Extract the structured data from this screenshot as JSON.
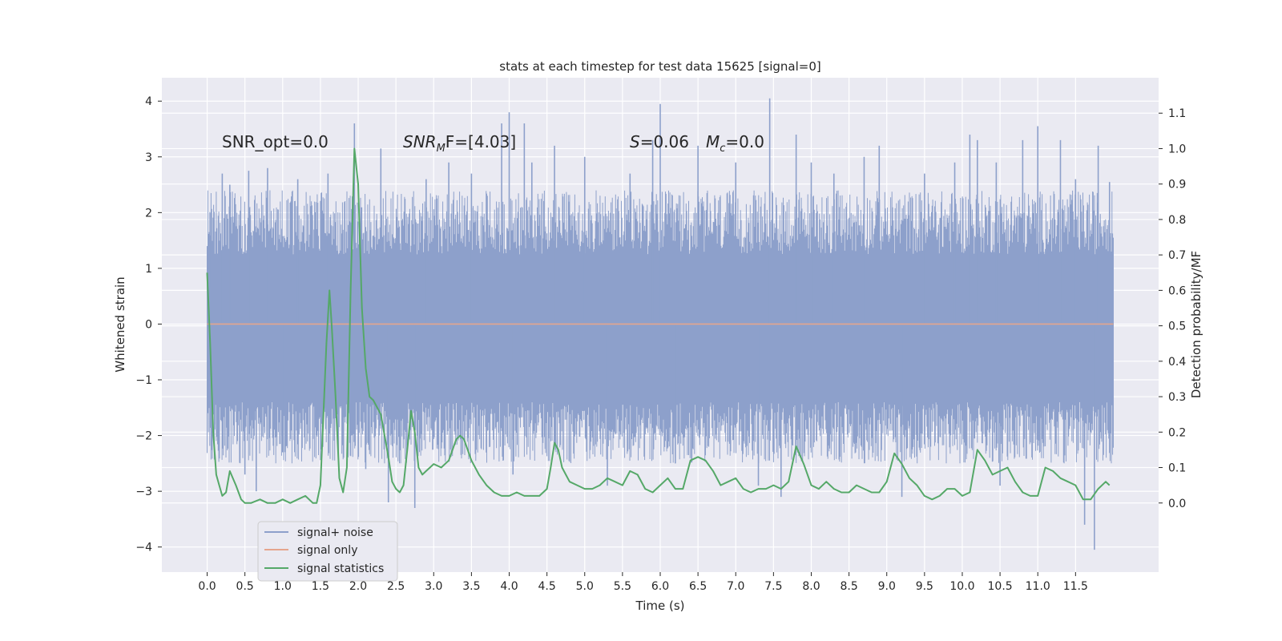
{
  "chart_data": {
    "type": "line",
    "title": "stats at each timestep for test data 15625 [signal=0]",
    "xlabel": "Time (s)",
    "ylabel_left": "Whitened strain",
    "ylabel_right": "Detection probability/MF",
    "xlim": [
      -0.6,
      12.6
    ],
    "ylim_left": [
      -4.45,
      4.42
    ],
    "ylim_right": [
      -0.195,
      1.2
    ],
    "x_ticks": [
      0.0,
      0.5,
      1.0,
      1.5,
      2.0,
      2.5,
      3.0,
      3.5,
      4.0,
      4.5,
      5.0,
      5.5,
      6.0,
      6.5,
      7.0,
      7.5,
      8.0,
      8.5,
      9.0,
      9.5,
      10.0,
      10.5,
      11.0,
      11.5
    ],
    "x_tick_labels": [
      "0.0",
      "0.5",
      "1.0",
      "1.5",
      "2.0",
      "2.5",
      "3.0",
      "3.5",
      "4.0",
      "4.5",
      "5.0",
      "5.5",
      "6.0",
      "6.5",
      "7.0",
      "7.5",
      "8.0",
      "8.5",
      "9.0",
      "9.5",
      "10.0",
      "10.5",
      "11.0",
      "11.5"
    ],
    "y_left_ticks": [
      -4,
      -3,
      -2,
      -1,
      0,
      1,
      2,
      3,
      4
    ],
    "y_left_tick_labels": [
      "−4",
      "−3",
      "−2",
      "−1",
      "0",
      "1",
      "2",
      "3",
      "4"
    ],
    "y_right_ticks": [
      0.0,
      0.1,
      0.2,
      0.3,
      0.4,
      0.5,
      0.6,
      0.7,
      0.8,
      0.9,
      1.0,
      1.1
    ],
    "y_right_tick_labels": [
      "0.0",
      "0.1",
      "0.2",
      "0.3",
      "0.4",
      "0.5",
      "0.6",
      "0.7",
      "0.8",
      "0.9",
      "1.0",
      "1.1"
    ],
    "grid": true,
    "legend_position": "lower-left",
    "annotations": {
      "snr_opt": "SNR_opt=0.0",
      "snr_mf_base": "SNR",
      "snr_mf_sub": "M",
      "snr_mf_rest": "F=[4.03]",
      "s_symbol": "S",
      "s_value": "=0.06",
      "mc_symbol": "M",
      "mc_sub": "c",
      "mc_value": "=0.0"
    },
    "series": [
      {
        "name": "signal+ noise",
        "axis": "left",
        "color": "#8da0cb",
        "style": "dense-noise",
        "x_range": [
          0.0,
          12.0
        ],
        "inner_band": [
          -1.4,
          1.25
        ],
        "outer_band": [
          -2.1,
          2.0
        ],
        "spikes": [
          [
            0.05,
            2.0
          ],
          [
            0.1,
            -1.8
          ],
          [
            0.2,
            2.7
          ],
          [
            0.3,
            2.5
          ],
          [
            0.4,
            -2.1
          ],
          [
            0.5,
            -2.7
          ],
          [
            0.55,
            2.75
          ],
          [
            0.65,
            -3.0
          ],
          [
            0.8,
            2.8
          ],
          [
            1.0,
            -2.3
          ],
          [
            1.2,
            2.6
          ],
          [
            1.6,
            2.7
          ],
          [
            1.95,
            3.6
          ],
          [
            2.1,
            -2.6
          ],
          [
            2.3,
            3.15
          ],
          [
            2.4,
            -3.2
          ],
          [
            2.75,
            -3.3
          ],
          [
            2.9,
            2.6
          ],
          [
            3.2,
            2.9
          ],
          [
            3.5,
            2.7
          ],
          [
            3.9,
            3.6
          ],
          [
            4.0,
            3.8
          ],
          [
            4.05,
            -2.7
          ],
          [
            4.2,
            3.6
          ],
          [
            4.3,
            2.9
          ],
          [
            4.6,
            3.2
          ],
          [
            5.0,
            3.0
          ],
          [
            5.3,
            -2.9
          ],
          [
            5.6,
            2.7
          ],
          [
            5.9,
            3.3
          ],
          [
            6.0,
            3.95
          ],
          [
            6.2,
            -2.5
          ],
          [
            6.5,
            3.2
          ],
          [
            7.0,
            2.9
          ],
          [
            7.3,
            -2.9
          ],
          [
            7.45,
            4.05
          ],
          [
            7.6,
            -3.1
          ],
          [
            7.8,
            3.4
          ],
          [
            8.0,
            2.9
          ],
          [
            8.3,
            2.7
          ],
          [
            8.7,
            3.0
          ],
          [
            8.9,
            3.2
          ],
          [
            9.2,
            -3.1
          ],
          [
            9.5,
            2.7
          ],
          [
            9.9,
            2.9
          ],
          [
            10.1,
            3.4
          ],
          [
            10.2,
            3.3
          ],
          [
            10.45,
            2.9
          ],
          [
            10.5,
            -2.9
          ],
          [
            10.8,
            3.3
          ],
          [
            11.0,
            3.55
          ],
          [
            11.3,
            3.3
          ],
          [
            11.5,
            2.6
          ],
          [
            11.62,
            -3.6
          ],
          [
            11.75,
            -4.05
          ],
          [
            11.8,
            3.2
          ],
          [
            11.95,
            2.55
          ]
        ]
      },
      {
        "name": "signal only",
        "axis": "left",
        "color": "#e5a58d",
        "x": [
          0.0,
          12.0
        ],
        "y": [
          0.0,
          0.0
        ]
      },
      {
        "name": "signal statistics",
        "axis": "right",
        "color": "#55a868",
        "x": [
          0.0,
          0.04,
          0.08,
          0.12,
          0.16,
          0.2,
          0.25,
          0.3,
          0.38,
          0.45,
          0.5,
          0.58,
          0.7,
          0.8,
          0.9,
          1.0,
          1.1,
          1.2,
          1.3,
          1.4,
          1.45,
          1.5,
          1.55,
          1.58,
          1.62,
          1.65,
          1.7,
          1.75,
          1.8,
          1.85,
          1.9,
          1.95,
          2.0,
          2.05,
          2.1,
          2.15,
          2.2,
          2.3,
          2.4,
          2.45,
          2.5,
          2.55,
          2.6,
          2.65,
          2.7,
          2.75,
          2.8,
          2.85,
          2.9,
          2.95,
          3.0,
          3.1,
          3.2,
          3.3,
          3.35,
          3.4,
          3.45,
          3.5,
          3.6,
          3.7,
          3.8,
          3.9,
          4.0,
          4.1,
          4.2,
          4.3,
          4.4,
          4.5,
          4.55,
          4.6,
          4.65,
          4.7,
          4.75,
          4.8,
          4.9,
          5.0,
          5.1,
          5.2,
          5.3,
          5.4,
          5.5,
          5.6,
          5.7,
          5.8,
          5.9,
          6.0,
          6.1,
          6.2,
          6.3,
          6.4,
          6.5,
          6.6,
          6.7,
          6.8,
          6.9,
          7.0,
          7.1,
          7.2,
          7.3,
          7.4,
          7.5,
          7.6,
          7.7,
          7.8,
          7.9,
          8.0,
          8.1,
          8.2,
          8.3,
          8.4,
          8.5,
          8.6,
          8.7,
          8.8,
          8.9,
          9.0,
          9.1,
          9.2,
          9.3,
          9.4,
          9.5,
          9.6,
          9.7,
          9.8,
          9.9,
          10.0,
          10.1,
          10.2,
          10.3,
          10.4,
          10.5,
          10.6,
          10.7,
          10.8,
          10.9,
          11.0,
          11.1,
          11.2,
          11.3,
          11.4,
          11.5,
          11.6,
          11.7,
          11.8,
          11.9,
          11.95
        ],
        "y": [
          0.65,
          0.45,
          0.2,
          0.08,
          0.05,
          0.02,
          0.03,
          0.09,
          0.05,
          0.01,
          0.0,
          0.0,
          0.01,
          0.0,
          0.0,
          0.01,
          0.0,
          0.01,
          0.02,
          0.0,
          0.0,
          0.05,
          0.3,
          0.45,
          0.6,
          0.5,
          0.3,
          0.07,
          0.03,
          0.1,
          0.6,
          1.0,
          0.9,
          0.55,
          0.38,
          0.3,
          0.29,
          0.25,
          0.13,
          0.06,
          0.04,
          0.03,
          0.05,
          0.15,
          0.26,
          0.2,
          0.1,
          0.08,
          0.09,
          0.1,
          0.11,
          0.1,
          0.12,
          0.18,
          0.19,
          0.18,
          0.15,
          0.12,
          0.08,
          0.05,
          0.03,
          0.02,
          0.02,
          0.03,
          0.02,
          0.02,
          0.02,
          0.04,
          0.1,
          0.17,
          0.15,
          0.1,
          0.08,
          0.06,
          0.05,
          0.04,
          0.04,
          0.05,
          0.07,
          0.06,
          0.05,
          0.09,
          0.08,
          0.04,
          0.03,
          0.05,
          0.07,
          0.04,
          0.04,
          0.12,
          0.13,
          0.12,
          0.09,
          0.05,
          0.06,
          0.07,
          0.04,
          0.03,
          0.04,
          0.04,
          0.05,
          0.04,
          0.06,
          0.16,
          0.11,
          0.05,
          0.04,
          0.06,
          0.04,
          0.03,
          0.03,
          0.05,
          0.04,
          0.03,
          0.03,
          0.06,
          0.14,
          0.11,
          0.07,
          0.05,
          0.02,
          0.01,
          0.02,
          0.04,
          0.04,
          0.02,
          0.03,
          0.15,
          0.12,
          0.08,
          0.09,
          0.1,
          0.06,
          0.03,
          0.02,
          0.02,
          0.1,
          0.09,
          0.07,
          0.06,
          0.05,
          0.01,
          0.01,
          0.04,
          0.06,
          0.05
        ]
      }
    ]
  }
}
